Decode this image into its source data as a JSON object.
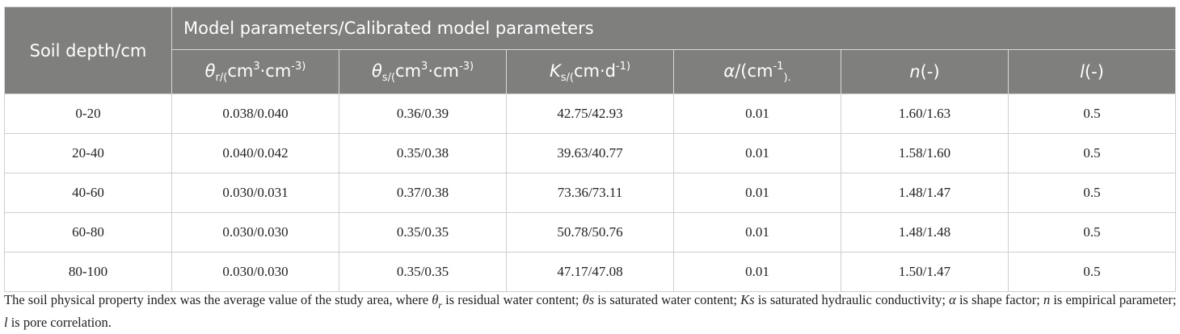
{
  "table": {
    "depth_header": "Soil depth/cm",
    "group_header": "Model parameters/Calibrated model parameters",
    "col_headers": {
      "theta_r": {
        "sym": "θ",
        "sub": "r/(",
        "unit": "cm",
        "sup1": "3",
        "mid": "·cm",
        "sup2": "-3)"
      },
      "theta_s": {
        "sym": "θ",
        "sub": "s/(",
        "unit": "cm",
        "sup1": "3",
        "mid": "·cm",
        "sup2": "-3)"
      },
      "ks": {
        "sym": "K",
        "sub": "s/(",
        "unit": "cm·d",
        "sup1": "-1)"
      },
      "alpha": {
        "sym": "α",
        "unit": "/(cm",
        "sup1": "-1",
        "tail": ")."
      },
      "n": {
        "sym": "n",
        "unit": "(-)"
      },
      "l": {
        "sym": "l",
        "unit": "(-)"
      }
    },
    "rows": [
      {
        "depth": "0-20",
        "theta_r": "0.038/0.040",
        "theta_s": "0.36/0.39",
        "ks": "42.75/42.93",
        "alpha": "0.01",
        "n": "1.60/1.63",
        "l": "0.5"
      },
      {
        "depth": "20-40",
        "theta_r": "0.040/0.042",
        "theta_s": "0.35/0.38",
        "ks": "39.63/40.77",
        "alpha": "0.01",
        "n": "1.58/1.60",
        "l": "0.5"
      },
      {
        "depth": "40-60",
        "theta_r": "0.030/0.031",
        "theta_s": "0.37/0.38",
        "ks": "73.36/73.11",
        "alpha": "0.01",
        "n": "1.48/1.47",
        "l": "0.5"
      },
      {
        "depth": "60-80",
        "theta_r": "0.030/0.030",
        "theta_s": "0.35/0.35",
        "ks": "50.78/50.76",
        "alpha": "0.01",
        "n": "1.48/1.48",
        "l": "0.5"
      },
      {
        "depth": "80-100",
        "theta_r": "0.030/0.030",
        "theta_s": "0.35/0.35",
        "ks": "47.17/47.08",
        "alpha": "0.01",
        "n": "1.50/1.47",
        "l": "0.5"
      }
    ]
  },
  "footnote": {
    "p1": "The soil physical property index was the average value of the study area, where ",
    "s1": "θ",
    "s1sub": "r",
    "p2": " is residual water content; ",
    "s2": "θs",
    "p3": " is saturated water content; ",
    "s3": "Ks",
    "p4": " is saturated hydraulic conductivity; ",
    "s4": "α",
    "p5": " is shape factor; ",
    "s5": "n",
    "p6": " is empirical parameter; ",
    "s6": "l",
    "p7": " is pore correlation."
  }
}
